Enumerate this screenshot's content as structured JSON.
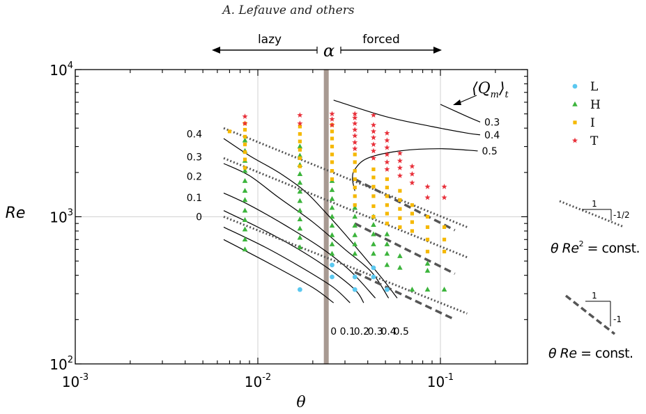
{
  "header": {
    "author": "A. Lefauve and others"
  },
  "regimes": {
    "left": "lazy",
    "center": "α",
    "right": "forced"
  },
  "chart_data": {
    "type": "scatter",
    "xlabel": "θ",
    "ylabel": "Re",
    "xscale": "log",
    "yscale": "log",
    "xlim": [
      0.001,
      0.3
    ],
    "ylim": [
      100,
      10000
    ],
    "xticks": [
      {
        "value": 0.001,
        "base": "10",
        "exp": "-3"
      },
      {
        "value": 0.01,
        "base": "10",
        "exp": "-2"
      },
      {
        "value": 0.1,
        "base": "10",
        "exp": "-1"
      }
    ],
    "yticks": [
      {
        "value": 100,
        "base": "10",
        "exp": "2"
      },
      {
        "value": 1000,
        "base": "10",
        "exp": "3"
      },
      {
        "value": 10000,
        "base": "10",
        "exp": "4"
      }
    ],
    "grid": true,
    "alpha_line": 0.0237,
    "legend": {
      "placement": "outside-right",
      "entries": [
        {
          "label": "L",
          "color": "#5bc8f0",
          "marker": "circle"
        },
        {
          "label": "H",
          "color": "#3cb43c",
          "marker": "triangle"
        },
        {
          "label": "I",
          "color": "#f5b800",
          "marker": "square"
        },
        {
          "label": "T",
          "color": "#e8303a",
          "marker": "star"
        }
      ]
    },
    "series": [
      {
        "name": "L",
        "points": [
          [
            0.017,
            320
          ],
          [
            0.0255,
            390
          ],
          [
            0.0255,
            470
          ],
          [
            0.034,
            320
          ],
          [
            0.034,
            390
          ],
          [
            0.043,
            390
          ],
          [
            0.043,
            450
          ],
          [
            0.051,
            320
          ]
        ]
      },
      {
        "name": "H",
        "points": [
          [
            0.0085,
            600
          ],
          [
            0.0085,
            700
          ],
          [
            0.0085,
            820
          ],
          [
            0.0085,
            950
          ],
          [
            0.0085,
            1100
          ],
          [
            0.0085,
            1300
          ],
          [
            0.0085,
            1500
          ],
          [
            0.0085,
            1750
          ],
          [
            0.0085,
            2050
          ],
          [
            0.0085,
            2400
          ],
          [
            0.0085,
            2800
          ],
          [
            0.0085,
            3300
          ],
          [
            0.017,
            620
          ],
          [
            0.017,
            720
          ],
          [
            0.017,
            830
          ],
          [
            0.017,
            960
          ],
          [
            0.017,
            1100
          ],
          [
            0.017,
            1280
          ],
          [
            0.017,
            1480
          ],
          [
            0.017,
            1700
          ],
          [
            0.017,
            1950
          ],
          [
            0.017,
            2250
          ],
          [
            0.017,
            2600
          ],
          [
            0.017,
            3000
          ],
          [
            0.0255,
            560
          ],
          [
            0.0255,
            650
          ],
          [
            0.0255,
            750
          ],
          [
            0.0255,
            870
          ],
          [
            0.0255,
            1000
          ],
          [
            0.0255,
            1150
          ],
          [
            0.0255,
            1320
          ],
          [
            0.0255,
            1520
          ],
          [
            0.0255,
            1750
          ],
          [
            0.034,
            560
          ],
          [
            0.034,
            650
          ],
          [
            0.034,
            750
          ],
          [
            0.034,
            870
          ],
          [
            0.034,
            1000
          ],
          [
            0.034,
            1150
          ],
          [
            0.043,
            560
          ],
          [
            0.043,
            650
          ],
          [
            0.043,
            760
          ],
          [
            0.043,
            880
          ],
          [
            0.043,
            1000
          ],
          [
            0.051,
            470
          ],
          [
            0.051,
            560
          ],
          [
            0.051,
            650
          ],
          [
            0.051,
            760
          ],
          [
            0.06,
            450
          ],
          [
            0.06,
            540
          ],
          [
            0.07,
            320
          ],
          [
            0.085,
            320
          ],
          [
            0.085,
            430
          ],
          [
            0.085,
            480
          ],
          [
            0.105,
            320
          ]
        ]
      },
      {
        "name": "I",
        "points": [
          [
            0.007,
            3800
          ],
          [
            0.0085,
            2150
          ],
          [
            0.0085,
            2450
          ],
          [
            0.0085,
            2750
          ],
          [
            0.0085,
            3100
          ],
          [
            0.0085,
            3500
          ],
          [
            0.0085,
            3900
          ],
          [
            0.0085,
            4300
          ],
          [
            0.017,
            2200
          ],
          [
            0.017,
            2500
          ],
          [
            0.017,
            2850
          ],
          [
            0.017,
            3250
          ],
          [
            0.017,
            3650
          ],
          [
            0.017,
            4100
          ],
          [
            0.0255,
            1800
          ],
          [
            0.0255,
            2050
          ],
          [
            0.0255,
            2350
          ],
          [
            0.0255,
            2650
          ],
          [
            0.0255,
            3000
          ],
          [
            0.0255,
            3400
          ],
          [
            0.0255,
            3800
          ],
          [
            0.0255,
            4200
          ],
          [
            0.034,
            1200
          ],
          [
            0.034,
            1380
          ],
          [
            0.034,
            1580
          ],
          [
            0.034,
            1800
          ],
          [
            0.034,
            2050
          ],
          [
            0.034,
            2350
          ],
          [
            0.034,
            2650
          ],
          [
            0.043,
            1000
          ],
          [
            0.043,
            1180
          ],
          [
            0.043,
            1380
          ],
          [
            0.043,
            1600
          ],
          [
            0.043,
            1850
          ],
          [
            0.043,
            2100
          ],
          [
            0.051,
            900
          ],
          [
            0.051,
            1050
          ],
          [
            0.051,
            1200
          ],
          [
            0.051,
            1380
          ],
          [
            0.051,
            1580
          ],
          [
            0.051,
            1800
          ],
          [
            0.06,
            850
          ],
          [
            0.06,
            980
          ],
          [
            0.06,
            1130
          ],
          [
            0.06,
            1300
          ],
          [
            0.06,
            1500
          ],
          [
            0.07,
            800
          ],
          [
            0.07,
            920
          ],
          [
            0.07,
            1050
          ],
          [
            0.07,
            1200
          ],
          [
            0.085,
            580
          ],
          [
            0.085,
            700
          ],
          [
            0.085,
            850
          ],
          [
            0.085,
            1000
          ],
          [
            0.105,
            580
          ],
          [
            0.105,
            700
          ],
          [
            0.105,
            850
          ]
        ]
      },
      {
        "name": "T",
        "points": [
          [
            0.0085,
            4300
          ],
          [
            0.0085,
            4800
          ],
          [
            0.017,
            4300
          ],
          [
            0.017,
            4900
          ],
          [
            0.0255,
            4200
          ],
          [
            0.0255,
            4600
          ],
          [
            0.0255,
            5000
          ],
          [
            0.034,
            2900
          ],
          [
            0.034,
            3200
          ],
          [
            0.034,
            3550
          ],
          [
            0.034,
            3900
          ],
          [
            0.034,
            4300
          ],
          [
            0.034,
            4700
          ],
          [
            0.034,
            5000
          ],
          [
            0.043,
            2500
          ],
          [
            0.043,
            2800
          ],
          [
            0.043,
            3100
          ],
          [
            0.043,
            3450
          ],
          [
            0.043,
            3800
          ],
          [
            0.043,
            4200
          ],
          [
            0.043,
            4900
          ],
          [
            0.051,
            2100
          ],
          [
            0.051,
            2350
          ],
          [
            0.051,
            2650
          ],
          [
            0.051,
            2950
          ],
          [
            0.051,
            3300
          ],
          [
            0.051,
            3700
          ],
          [
            0.06,
            1900
          ],
          [
            0.06,
            2150
          ],
          [
            0.06,
            2400
          ],
          [
            0.06,
            2700
          ],
          [
            0.07,
            1700
          ],
          [
            0.07,
            1950
          ],
          [
            0.07,
            2200
          ],
          [
            0.085,
            1350
          ],
          [
            0.085,
            1600
          ],
          [
            0.105,
            1350
          ],
          [
            0.105,
            1600
          ]
        ]
      }
    ],
    "contours_lower": {
      "label_header": "",
      "lines": [
        {
          "label": "0",
          "points": [
            [
              0.0065,
              700
            ],
            [
              0.012,
              470
            ],
            [
              0.02,
              330
            ],
            [
              0.026,
              260
            ]
          ]
        },
        {
          "label": "0.1",
          "points": [
            [
              0.0065,
              850
            ],
            [
              0.011,
              620
            ],
            [
              0.018,
              440
            ],
            [
              0.026,
              330
            ],
            [
              0.032,
              260
            ]
          ]
        },
        {
          "label": "0.2",
          "points": [
            [
              0.0065,
              1100
            ],
            [
              0.01,
              850
            ],
            [
              0.016,
              620
            ],
            [
              0.024,
              450
            ],
            [
              0.034,
              320
            ],
            [
              0.038,
              260
            ]
          ]
        },
        {
          "label": "0.3",
          "points": [
            [
              0.0065,
              1450
            ],
            [
              0.009,
              1200
            ],
            [
              0.014,
              880
            ],
            [
              0.022,
              620
            ],
            [
              0.032,
              430
            ],
            [
              0.044,
              280
            ]
          ]
        },
        {
          "label": "0.4",
          "points": [
            [
              0.0065,
              2300
            ],
            [
              0.009,
              1900
            ],
            [
              0.013,
              1350
            ],
            [
              0.02,
              920
            ],
            [
              0.03,
              600
            ],
            [
              0.042,
              420
            ],
            [
              0.052,
              280
            ]
          ]
        },
        {
          "label": "0.5",
          "points": [
            [
              0.0065,
              3400
            ],
            [
              0.009,
              2600
            ],
            [
              0.013,
              2000
            ],
            [
              0.018,
              1500
            ],
            [
              0.023,
              1100
            ],
            [
              0.029,
              800
            ],
            [
              0.037,
              560
            ],
            [
              0.048,
              380
            ],
            [
              0.058,
              280
            ]
          ]
        }
      ],
      "lower_label_values": [
        {
          "label": "0",
          "x": 0.026
        },
        {
          "label": "0.1",
          "x": 0.031
        },
        {
          "label": "0.2",
          "x": 0.037
        },
        {
          "label": "0.3",
          "x": 0.044
        },
        {
          "label": "0.4",
          "x": 0.052
        },
        {
          "label": "0.5",
          "x": 0.061
        }
      ]
    },
    "contours_upper": {
      "title_base": "⟨Q",
      "title_sub": "m",
      "title_tail": "⟩",
      "title_sub2": "t",
      "lines": [
        {
          "label": "0.3",
          "points": [
            [
              0.1,
              5800
            ],
            [
              0.14,
              4800
            ],
            [
              0.165,
              4400
            ]
          ]
        },
        {
          "label": "0.4",
          "points": [
            [
              0.026,
              6200
            ],
            [
              0.05,
              4800
            ],
            [
              0.09,
              4100
            ],
            [
              0.14,
              3700
            ],
            [
              0.165,
              3600
            ]
          ]
        },
        {
          "label": "0.5",
          "points": [
            [
              0.034,
              1500
            ],
            [
              0.033,
              1800
            ],
            [
              0.034,
              2100
            ],
            [
              0.04,
              2500
            ],
            [
              0.06,
              2800
            ],
            [
              0.1,
              2900
            ],
            [
              0.16,
              2800
            ]
          ]
        }
      ],
      "left_labels": [
        {
          "label": "0.4",
          "re": 3650
        },
        {
          "label": "0.3",
          "re": 2550
        },
        {
          "label": "0.2",
          "re": 1880
        },
        {
          "label": "0.1",
          "re": 1350
        },
        {
          "label": "0",
          "re": 1000
        }
      ]
    },
    "scaling_lines": [
      {
        "name": "θ Re² = const. (dotted)",
        "points": [
          [
            0.0065,
            4000
          ],
          [
            0.14,
            850
          ]
        ],
        "style": "dotted"
      },
      {
        "name": "θ Re² = const. (dotted)",
        "points": [
          [
            0.0065,
            2500
          ],
          [
            0.14,
            530
          ]
        ],
        "style": "dotted"
      },
      {
        "name": "θ Re² = const. (dotted)",
        "points": [
          [
            0.0065,
            1000
          ],
          [
            0.14,
            220
          ]
        ],
        "style": "dotted"
      },
      {
        "name": "θ Re = const. (dashed)",
        "points": [
          [
            0.034,
            1800
          ],
          [
            0.12,
            810
          ]
        ],
        "style": "dashed"
      },
      {
        "name": "θ Re = const. (dashed)",
        "points": [
          [
            0.034,
            900
          ],
          [
            0.12,
            410
          ]
        ],
        "style": "dashed"
      },
      {
        "name": "θ Re = const. (dashed)",
        "points": [
          [
            0.034,
            420
          ],
          [
            0.12,
            200
          ]
        ],
        "style": "dashed"
      }
    ]
  },
  "side_panel": {
    "slope1": {
      "num": "1",
      "den": "-1/2",
      "label_pre": "θ Re",
      "label_sup": "2",
      "label_post": " = const."
    },
    "slope2": {
      "num": "1",
      "den": "-1",
      "label_pre": "θ Re",
      "label_post": " = const."
    }
  },
  "colors": {
    "axis": "#000000",
    "grid": "#d8d8d8",
    "alpha_band": "#a89a92",
    "contour": "#000000",
    "dotted": "#555555",
    "dashed": "#555555"
  }
}
